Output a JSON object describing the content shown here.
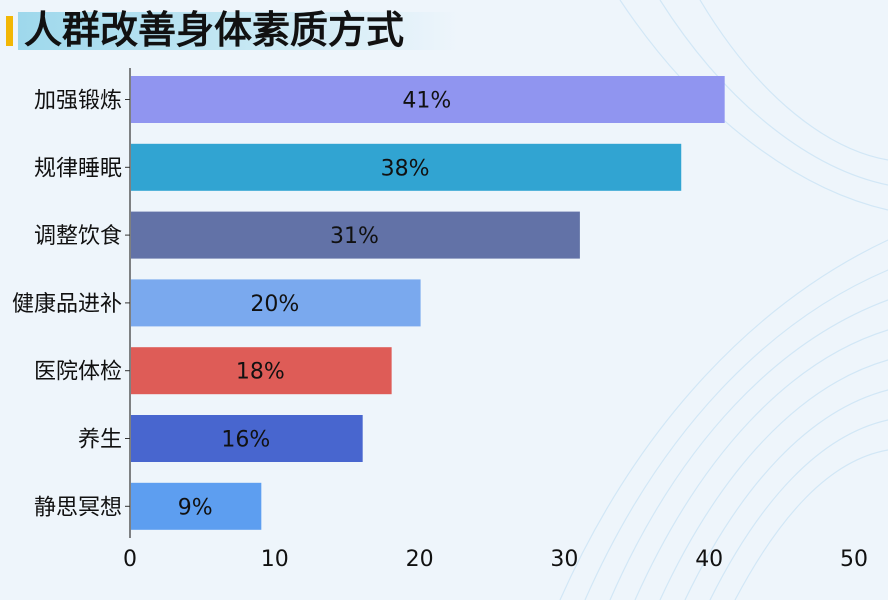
{
  "title": "人群改善身体素质方式",
  "colors": {
    "accent": "#f2b705",
    "axis": "#333333"
  },
  "chart_data": {
    "type": "bar",
    "orientation": "horizontal",
    "title": "人群改善身体素质方式",
    "categories": [
      "加强锻炼",
      "规律睡眠",
      "调整饮食",
      "健康品进补",
      "医院体检",
      "养生",
      "静思冥想"
    ],
    "values": [
      41,
      38,
      31,
      20,
      18,
      16,
      9
    ],
    "value_labels": [
      "41%",
      "38%",
      "31%",
      "20%",
      "18%",
      "16%",
      "9%"
    ],
    "bar_colors": [
      "#9095f0",
      "#31a4d2",
      "#6272a7",
      "#7aa9ee",
      "#de5c57",
      "#4866cf",
      "#5d9ef0"
    ],
    "xlim": [
      0,
      50
    ],
    "xticks": [
      "0",
      "10",
      "20",
      "30",
      "40",
      "50"
    ],
    "grid": false,
    "legend": "none"
  }
}
